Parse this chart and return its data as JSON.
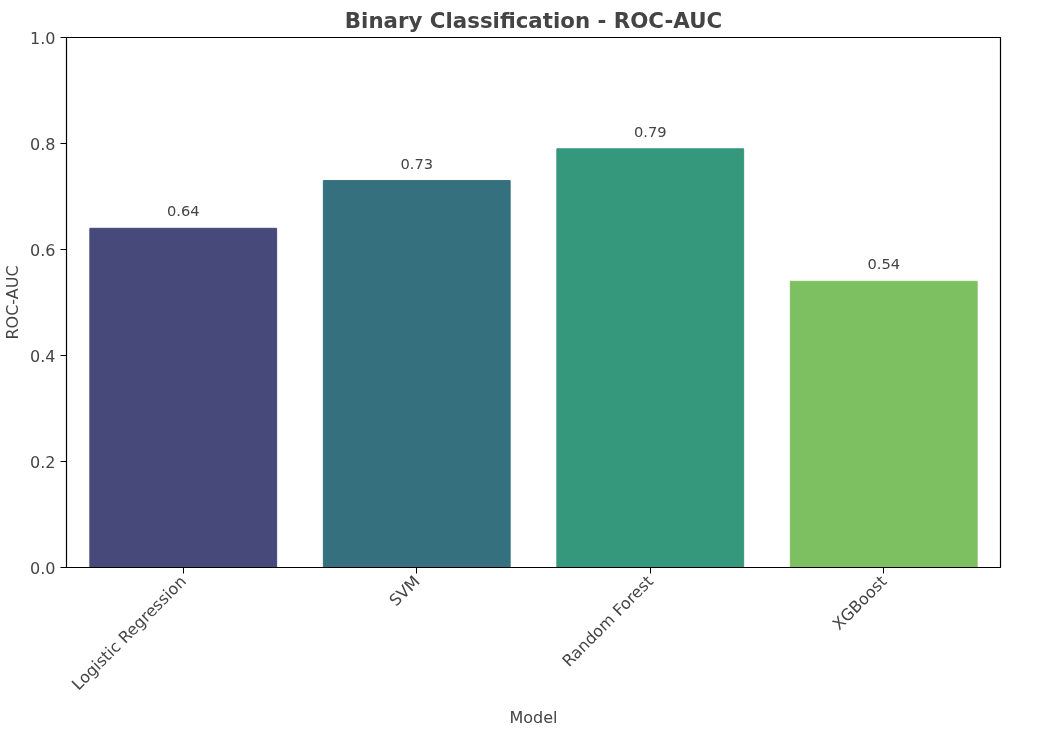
{
  "chart_data": {
    "type": "bar",
    "title": "Binary Classification - ROC-AUC",
    "xlabel": "Model",
    "ylabel": "ROC-AUC",
    "categories": [
      "Logistic Regression",
      "SVM",
      "Random Forest",
      "XGBoost"
    ],
    "values": [
      0.64,
      0.73,
      0.79,
      0.54
    ],
    "colors": [
      "#46497a",
      "#35707e",
      "#35977b",
      "#7dc062"
    ],
    "ylim": [
      0,
      1
    ],
    "yticks": [
      {
        "value": 0,
        "label": "0.0"
      },
      0.2,
      0.4,
      0.6,
      0.8,
      {
        "value": 1,
        "label": "1.0"
      }
    ],
    "value_labels": [
      "0.64",
      "0.73",
      "0.79",
      "0.54"
    ],
    "grid": false
  }
}
